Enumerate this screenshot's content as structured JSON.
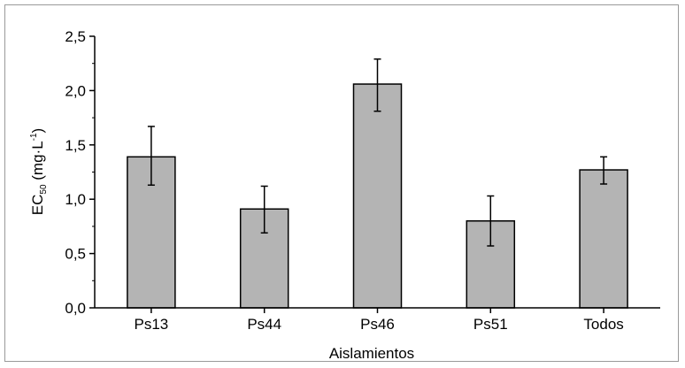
{
  "chart_data": {
    "type": "bar",
    "categories": [
      "Ps13",
      "Ps44",
      "Ps46",
      "Ps51",
      "Todos"
    ],
    "values": [
      1.39,
      0.91,
      2.06,
      0.8,
      1.27
    ],
    "error_low": [
      1.13,
      0.69,
      1.81,
      0.57,
      1.14
    ],
    "error_high": [
      1.67,
      1.12,
      2.29,
      1.03,
      1.39
    ],
    "xlabel": "Aislamientos",
    "ylabel": {
      "main": "EC",
      "sub": "50",
      "unit_open": " (mg·L",
      "sup": "-1",
      "unit_close": ")"
    },
    "ylim": [
      0,
      2.5
    ],
    "yticks": [
      "0,0",
      "0,5",
      "1,0",
      "1,5",
      "2,0",
      "2,5"
    ],
    "grid": false,
    "legend": "none",
    "bar_color": "#b4b4b4",
    "bar_edge_color": "#000000"
  }
}
